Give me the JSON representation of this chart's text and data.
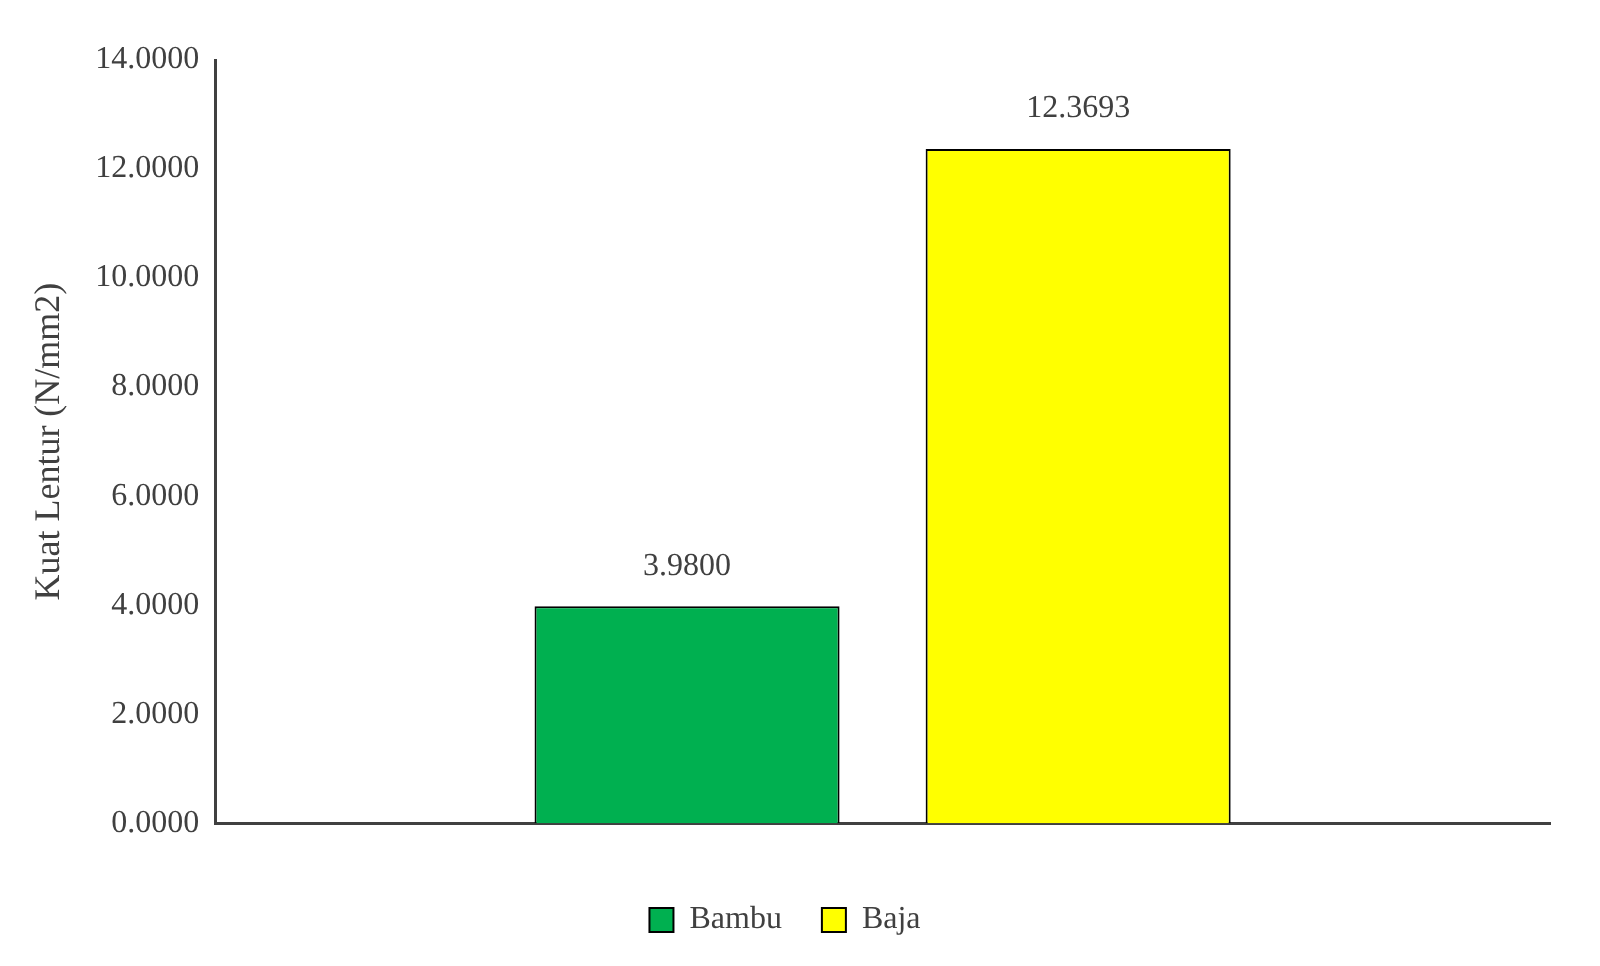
{
  "chart_data": {
    "type": "bar",
    "ylabel": "Kuat Lentur (N/mm2)",
    "categories": [
      null
    ],
    "series": [
      {
        "name": "Bambu",
        "color": "#00b050",
        "values": [
          3.98
        ],
        "value_labels": [
          "3.9800"
        ]
      },
      {
        "name": "Baja",
        "color": "#ffff00",
        "values": [
          12.3693
        ],
        "value_labels": [
          "12.3693"
        ]
      }
    ],
    "ylim": [
      0,
      14
    ],
    "yticks": [
      {
        "value": 0,
        "label": "0.0000"
      },
      {
        "value": 2,
        "label": "2.0000"
      },
      {
        "value": 4,
        "label": "4.0000"
      },
      {
        "value": 6,
        "label": "6.0000"
      },
      {
        "value": 8,
        "label": "8.0000"
      },
      {
        "value": 10,
        "label": "10.0000"
      },
      {
        "value": 12,
        "label": "12.0000"
      },
      {
        "value": 14,
        "label": "14.0000"
      }
    ],
    "grid": false,
    "legend": "bottom"
  }
}
